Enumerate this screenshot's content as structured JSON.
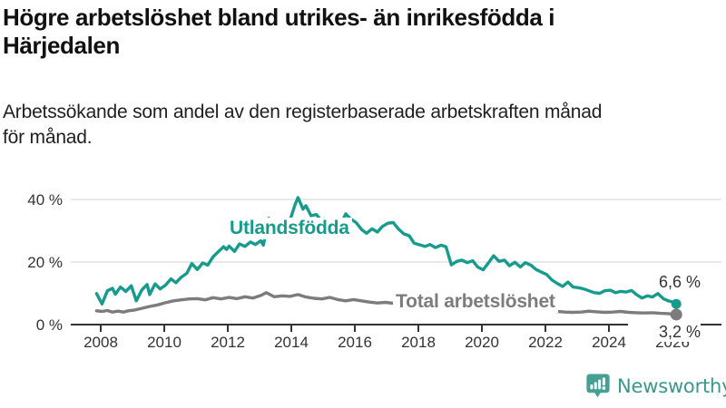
{
  "header": {
    "title": "Högre arbetslöshet bland utrikes- än inrikesfödda i Härjedalen",
    "title_lines": [
      "Högre arbetslöshet bland utrikes- än inrikesfödda i",
      "Härjedalen"
    ],
    "subtitle": "Arbetssökande som andel av den registerbaserade arbetskraften månad för månad.",
    "subtitle_lines": [
      "Arbetssökande som andel av den registerbaserade arbetskraften månad",
      "för månad."
    ]
  },
  "chart_data": {
    "type": "line",
    "title": "Högre arbetslöshet bland utrikes- än inrikesfödda i Härjedalen",
    "subtitle": "Arbetssökande som andel av den registerbaserade arbetskraften månad för månad.",
    "xlabel": "",
    "ylabel": "",
    "grid": true,
    "legend_position": "inline-labels",
    "axis_color": "#333333",
    "grid_color": "#dcdcdc",
    "annotation_color": "#333333",
    "x_axis": {
      "tick_values": [
        2008,
        2010,
        2012,
        2014,
        2016,
        2018,
        2020,
        2022,
        2024,
        2026
      ],
      "range": [
        2007.8,
        2026.6
      ]
    },
    "y_axis": {
      "tick_values": [
        0,
        20,
        40
      ],
      "tick_labels": [
        "0 %",
        "20 %",
        "40 %"
      ],
      "range": [
        0,
        44
      ]
    },
    "series": [
      {
        "name": "Utlandsfödda",
        "color": "#179b8c",
        "end_label": "6,6 %",
        "last_value": 6.6,
        "points": [
          [
            2007.87,
            9.9
          ],
          [
            2008.04,
            6.6
          ],
          [
            2008.21,
            10.8
          ],
          [
            2008.37,
            11.6
          ],
          [
            2008.46,
            9.7
          ],
          [
            2008.62,
            12.0
          ],
          [
            2008.79,
            10.6
          ],
          [
            2008.96,
            12.4
          ],
          [
            2009.12,
            7.6
          ],
          [
            2009.29,
            11.0
          ],
          [
            2009.46,
            12.8
          ],
          [
            2009.54,
            9.6
          ],
          [
            2009.71,
            13.0
          ],
          [
            2009.87,
            11.4
          ],
          [
            2010.04,
            12.6
          ],
          [
            2010.21,
            14.6
          ],
          [
            2010.37,
            13.4
          ],
          [
            2010.54,
            15.2
          ],
          [
            2010.71,
            16.4
          ],
          [
            2010.87,
            19.5
          ],
          [
            2011.04,
            17.6
          ],
          [
            2011.21,
            19.7
          ],
          [
            2011.37,
            19.0
          ],
          [
            2011.54,
            21.7
          ],
          [
            2011.71,
            23.4
          ],
          [
            2011.87,
            24.9
          ],
          [
            2011.96,
            24.0
          ],
          [
            2012.04,
            25.1
          ],
          [
            2012.21,
            23.4
          ],
          [
            2012.37,
            25.8
          ],
          [
            2012.54,
            25.0
          ],
          [
            2012.71,
            26.4
          ],
          [
            2012.87,
            25.6
          ],
          [
            2013.04,
            26.8
          ],
          [
            2013.12,
            25.4
          ],
          [
            2013.29,
            34.0
          ],
          [
            2013.46,
            30.6
          ],
          [
            2013.62,
            31.8
          ],
          [
            2013.79,
            30.8
          ],
          [
            2013.96,
            33.4
          ],
          [
            2014.12,
            38.4
          ],
          [
            2014.21,
            40.6
          ],
          [
            2014.37,
            36.9
          ],
          [
            2014.46,
            38.0
          ],
          [
            2014.62,
            34.8
          ],
          [
            2014.79,
            35.2
          ],
          [
            2014.96,
            33.0
          ],
          [
            2015.04,
            33.8
          ],
          [
            2015.21,
            32.2
          ],
          [
            2015.37,
            33.0
          ],
          [
            2015.54,
            31.6
          ],
          [
            2015.71,
            35.4
          ],
          [
            2015.87,
            33.8
          ],
          [
            2016.04,
            32.6
          ],
          [
            2016.21,
            30.4
          ],
          [
            2016.37,
            29.2
          ],
          [
            2016.54,
            30.6
          ],
          [
            2016.71,
            29.6
          ],
          [
            2016.87,
            31.4
          ],
          [
            2017.04,
            32.4
          ],
          [
            2017.21,
            32.6
          ],
          [
            2017.37,
            30.6
          ],
          [
            2017.54,
            29.0
          ],
          [
            2017.71,
            28.4
          ],
          [
            2017.87,
            26.0
          ],
          [
            2018.04,
            25.5
          ],
          [
            2018.21,
            25.0
          ],
          [
            2018.37,
            25.6
          ],
          [
            2018.54,
            24.6
          ],
          [
            2018.71,
            25.4
          ],
          [
            2018.87,
            24.9
          ],
          [
            2019.04,
            19.1
          ],
          [
            2019.21,
            20.2
          ],
          [
            2019.37,
            20.6
          ],
          [
            2019.54,
            19.8
          ],
          [
            2019.71,
            20.4
          ],
          [
            2019.87,
            18.4
          ],
          [
            2020.04,
            17.5
          ],
          [
            2020.21,
            19.8
          ],
          [
            2020.37,
            22.0
          ],
          [
            2020.54,
            20.2
          ],
          [
            2020.71,
            20.6
          ],
          [
            2020.87,
            18.8
          ],
          [
            2021.04,
            19.9
          ],
          [
            2021.21,
            18.4
          ],
          [
            2021.37,
            19.8
          ],
          [
            2021.54,
            19.0
          ],
          [
            2021.71,
            17.6
          ],
          [
            2021.87,
            16.8
          ],
          [
            2022.04,
            16.0
          ],
          [
            2022.21,
            14.2
          ],
          [
            2022.37,
            13.2
          ],
          [
            2022.54,
            12.2
          ],
          [
            2022.71,
            13.6
          ],
          [
            2022.87,
            12.0
          ],
          [
            2023.04,
            11.8
          ],
          [
            2023.21,
            11.4
          ],
          [
            2023.37,
            10.8
          ],
          [
            2023.54,
            10.2
          ],
          [
            2023.71,
            10.0
          ],
          [
            2023.87,
            10.8
          ],
          [
            2024.04,
            11.0
          ],
          [
            2024.21,
            10.2
          ],
          [
            2024.37,
            10.6
          ],
          [
            2024.54,
            10.4
          ],
          [
            2024.71,
            10.9
          ],
          [
            2024.87,
            9.6
          ],
          [
            2025.04,
            8.5
          ],
          [
            2025.21,
            9.2
          ],
          [
            2025.37,
            8.8
          ],
          [
            2025.54,
            9.9
          ],
          [
            2025.71,
            8.3
          ],
          [
            2025.87,
            7.6
          ],
          [
            2026.04,
            7.1
          ],
          [
            2026.12,
            6.6
          ]
        ]
      },
      {
        "name": "Total arbetslöshet",
        "color": "#7c7c7c",
        "end_label": "3,2 %",
        "last_value": 3.2,
        "points": [
          [
            2007.87,
            4.4
          ],
          [
            2008.04,
            4.2
          ],
          [
            2008.21,
            4.5
          ],
          [
            2008.37,
            4.0
          ],
          [
            2008.54,
            4.3
          ],
          [
            2008.71,
            4.0
          ],
          [
            2008.87,
            4.4
          ],
          [
            2009.04,
            4.6
          ],
          [
            2009.29,
            5.2
          ],
          [
            2009.54,
            5.8
          ],
          [
            2009.79,
            6.3
          ],
          [
            2010.04,
            7.0
          ],
          [
            2010.29,
            7.6
          ],
          [
            2010.54,
            7.9
          ],
          [
            2010.79,
            8.2
          ],
          [
            2011.04,
            8.3
          ],
          [
            2011.29,
            7.9
          ],
          [
            2011.54,
            8.6
          ],
          [
            2011.79,
            8.2
          ],
          [
            2012.04,
            8.7
          ],
          [
            2012.29,
            8.3
          ],
          [
            2012.54,
            8.9
          ],
          [
            2012.79,
            8.5
          ],
          [
            2013.04,
            9.3
          ],
          [
            2013.21,
            10.2
          ],
          [
            2013.46,
            8.9
          ],
          [
            2013.71,
            9.2
          ],
          [
            2013.96,
            9.0
          ],
          [
            2014.21,
            9.6
          ],
          [
            2014.46,
            8.8
          ],
          [
            2014.71,
            8.4
          ],
          [
            2014.96,
            8.2
          ],
          [
            2015.21,
            8.7
          ],
          [
            2015.46,
            8.0
          ],
          [
            2015.71,
            7.6
          ],
          [
            2015.96,
            8.0
          ],
          [
            2016.21,
            7.6
          ],
          [
            2016.46,
            7.2
          ],
          [
            2016.71,
            6.9
          ],
          [
            2016.96,
            7.1
          ],
          [
            2017.21,
            6.8
          ],
          [
            2017.46,
            6.5
          ],
          [
            2017.71,
            6.3
          ],
          [
            2017.96,
            6.4
          ],
          [
            2018.21,
            6.1
          ],
          [
            2018.46,
            5.9
          ],
          [
            2018.71,
            5.7
          ],
          [
            2018.96,
            5.8
          ],
          [
            2019.21,
            5.6
          ],
          [
            2019.46,
            5.5
          ],
          [
            2019.71,
            5.4
          ],
          [
            2019.96,
            5.6
          ],
          [
            2020.21,
            6.6
          ],
          [
            2020.37,
            7.3
          ],
          [
            2020.62,
            7.0
          ],
          [
            2020.87,
            6.6
          ],
          [
            2021.12,
            6.2
          ],
          [
            2021.37,
            5.8
          ],
          [
            2021.62,
            5.3
          ],
          [
            2021.87,
            4.9
          ],
          [
            2022.12,
            4.5
          ],
          [
            2022.37,
            4.2
          ],
          [
            2022.62,
            4.0
          ],
          [
            2022.87,
            3.9
          ],
          [
            2023.12,
            4.0
          ],
          [
            2023.37,
            4.3
          ],
          [
            2023.62,
            4.1
          ],
          [
            2023.87,
            3.9
          ],
          [
            2024.12,
            4.0
          ],
          [
            2024.37,
            4.2
          ],
          [
            2024.62,
            3.9
          ],
          [
            2024.87,
            3.8
          ],
          [
            2025.12,
            3.7
          ],
          [
            2025.37,
            3.8
          ],
          [
            2025.62,
            3.6
          ],
          [
            2025.87,
            3.5
          ],
          [
            2026.12,
            3.2
          ]
        ]
      }
    ]
  },
  "footer": {
    "brand": "Newsworthy",
    "brand_color": "#38998b",
    "brand_icon": "newsworthy-bar-chart-bubble-icon"
  }
}
